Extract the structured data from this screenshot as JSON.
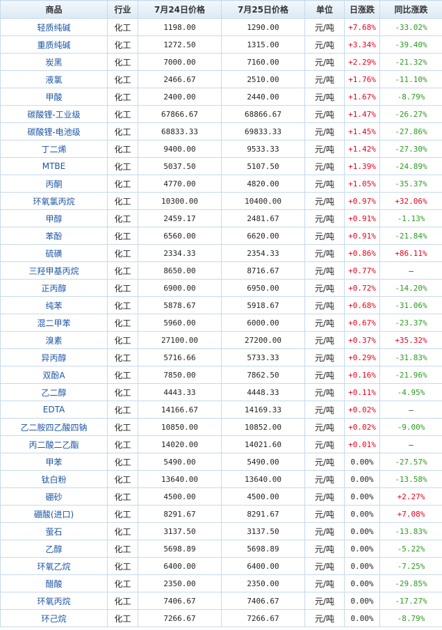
{
  "headers": [
    "商品",
    "行业",
    "7月24日价格",
    "7月25日价格",
    "单位",
    "日涨跌",
    "同比涨跌"
  ],
  "colors": {
    "up": "#e8001a",
    "down": "#2a9b1f",
    "link": "#1c55a5"
  },
  "rows": [
    [
      "轻质纯碱",
      "化工",
      "1198.00",
      "1290.00",
      "元/吨",
      "+7.68%",
      "-33.02%"
    ],
    [
      "重质纯碱",
      "化工",
      "1272.50",
      "1315.00",
      "元/吨",
      "+3.34%",
      "-39.40%"
    ],
    [
      "炭黑",
      "化工",
      "7000.00",
      "7160.00",
      "元/吨",
      "+2.29%",
      "-21.32%"
    ],
    [
      "液氯",
      "化工",
      "2466.67",
      "2510.00",
      "元/吨",
      "+1.76%",
      "-11.10%"
    ],
    [
      "甲酸",
      "化工",
      "2400.00",
      "2440.00",
      "元/吨",
      "+1.67%",
      "-8.79%"
    ],
    [
      "碳酸锂-工业级",
      "化工",
      "67866.67",
      "68866.67",
      "元/吨",
      "+1.47%",
      "-26.27%"
    ],
    [
      "碳酸锂-电池级",
      "化工",
      "68833.33",
      "69833.33",
      "元/吨",
      "+1.45%",
      "-27.86%"
    ],
    [
      "丁二烯",
      "化工",
      "9400.00",
      "9533.33",
      "元/吨",
      "+1.42%",
      "-27.30%"
    ],
    [
      "MTBE",
      "化工",
      "5037.50",
      "5107.50",
      "元/吨",
      "+1.39%",
      "-24.89%"
    ],
    [
      "丙酮",
      "化工",
      "4770.00",
      "4820.00",
      "元/吨",
      "+1.05%",
      "-35.37%"
    ],
    [
      "环氧氯丙烷",
      "化工",
      "10300.00",
      "10400.00",
      "元/吨",
      "+0.97%",
      "+32.06%"
    ],
    [
      "甲醇",
      "化工",
      "2459.17",
      "2481.67",
      "元/吨",
      "+0.91%",
      "-1.13%"
    ],
    [
      "苯酚",
      "化工",
      "6560.00",
      "6620.00",
      "元/吨",
      "+0.91%",
      "-21.84%"
    ],
    [
      "硫磺",
      "化工",
      "2334.33",
      "2354.33",
      "元/吨",
      "+0.86%",
      "+86.11%"
    ],
    [
      "三羟甲基丙烷",
      "化工",
      "8650.00",
      "8716.67",
      "元/吨",
      "+0.77%",
      "—"
    ],
    [
      "正丙醇",
      "化工",
      "6900.00",
      "6950.00",
      "元/吨",
      "+0.72%",
      "-14.20%"
    ],
    [
      "纯苯",
      "化工",
      "5878.67",
      "5918.67",
      "元/吨",
      "+0.68%",
      "-31.06%"
    ],
    [
      "混二甲苯",
      "化工",
      "5960.00",
      "6000.00",
      "元/吨",
      "+0.67%",
      "-23.37%"
    ],
    [
      "溴素",
      "化工",
      "27100.00",
      "27200.00",
      "元/吨",
      "+0.37%",
      "+35.32%"
    ],
    [
      "异丙醇",
      "化工",
      "5716.66",
      "5733.33",
      "元/吨",
      "+0.29%",
      "-31.83%"
    ],
    [
      "双酚A",
      "化工",
      "7850.00",
      "7862.50",
      "元/吨",
      "+0.16%",
      "-21.96%"
    ],
    [
      "乙二醇",
      "化工",
      "4443.33",
      "4448.33",
      "元/吨",
      "+0.11%",
      "-4.95%"
    ],
    [
      "EDTA",
      "化工",
      "14166.67",
      "14169.33",
      "元/吨",
      "+0.02%",
      "—"
    ],
    [
      "乙二胺四乙酸四钠",
      "化工",
      "10850.00",
      "10852.00",
      "元/吨",
      "+0.02%",
      "-9.00%"
    ],
    [
      "丙二酸二乙酯",
      "化工",
      "14020.00",
      "14021.60",
      "元/吨",
      "+0.01%",
      "—"
    ],
    [
      "甲苯",
      "化工",
      "5490.00",
      "5490.00",
      "元/吨",
      "0.00%",
      "-27.57%"
    ],
    [
      "钛白粉",
      "化工",
      "13640.00",
      "13640.00",
      "元/吨",
      "0.00%",
      "-13.58%"
    ],
    [
      "硼砂",
      "化工",
      "4500.00",
      "4500.00",
      "元/吨",
      "0.00%",
      "+2.27%"
    ],
    [
      "硼酸(进口)",
      "化工",
      "8291.67",
      "8291.67",
      "元/吨",
      "0.00%",
      "+7.08%"
    ],
    [
      "萤石",
      "化工",
      "3137.50",
      "3137.50",
      "元/吨",
      "0.00%",
      "-13.83%"
    ],
    [
      "乙醇",
      "化工",
      "5698.89",
      "5698.89",
      "元/吨",
      "0.00%",
      "-5.22%"
    ],
    [
      "环氧乙烷",
      "化工",
      "6400.00",
      "6400.00",
      "元/吨",
      "0.00%",
      "-7.25%"
    ],
    [
      "醋酸",
      "化工",
      "2350.00",
      "2350.00",
      "元/吨",
      "0.00%",
      "-29.85%"
    ],
    [
      "环氧丙烷",
      "化工",
      "7406.67",
      "7406.67",
      "元/吨",
      "0.00%",
      "-17.27%"
    ],
    [
      "环己烷",
      "化工",
      "7266.67",
      "7266.67",
      "元/吨",
      "0.00%",
      "-8.79%"
    ]
  ]
}
